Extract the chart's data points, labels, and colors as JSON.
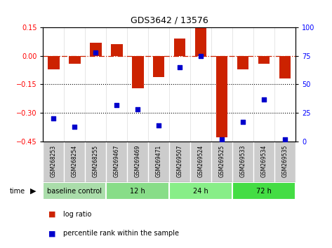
{
  "title": "GDS3642 / 13576",
  "samples": [
    "GSM268253",
    "GSM268254",
    "GSM268255",
    "GSM269467",
    "GSM269469",
    "GSM269471",
    "GSM269507",
    "GSM269524",
    "GSM269525",
    "GSM269533",
    "GSM269534",
    "GSM269535"
  ],
  "log_ratio": [
    -0.07,
    -0.04,
    0.07,
    0.06,
    -0.17,
    -0.11,
    0.09,
    0.15,
    -0.43,
    -0.07,
    -0.04,
    -0.12
  ],
  "percentile_rank": [
    20,
    13,
    78,
    32,
    28,
    14,
    65,
    75,
    2,
    17,
    37,
    2
  ],
  "ylim_left": [
    -0.45,
    0.15
  ],
  "ylim_right": [
    0,
    100
  ],
  "yticks_left": [
    0.15,
    0,
    -0.15,
    -0.3,
    -0.45
  ],
  "yticks_right": [
    100,
    75,
    50,
    25,
    0
  ],
  "hlines_dotted": [
    -0.15,
    -0.3
  ],
  "bar_color": "#cc2200",
  "dot_color": "#0000cc",
  "zero_line_color": "#cc2200",
  "groups": [
    {
      "label": "baseline control",
      "start": 0,
      "end": 3
    },
    {
      "label": "12 h",
      "start": 3,
      "end": 6
    },
    {
      "label": "24 h",
      "start": 6,
      "end": 9
    },
    {
      "label": "72 h",
      "start": 9,
      "end": 12
    }
  ],
  "group_colors": [
    "#aaddaa",
    "#88dd88",
    "#88ee88",
    "#44dd44"
  ],
  "legend_bar_label": "log ratio",
  "legend_dot_label": "percentile rank within the sample",
  "bar_width": 0.55,
  "background_color": "#ffffff",
  "label_bg": "#cccccc",
  "time_label": "time"
}
